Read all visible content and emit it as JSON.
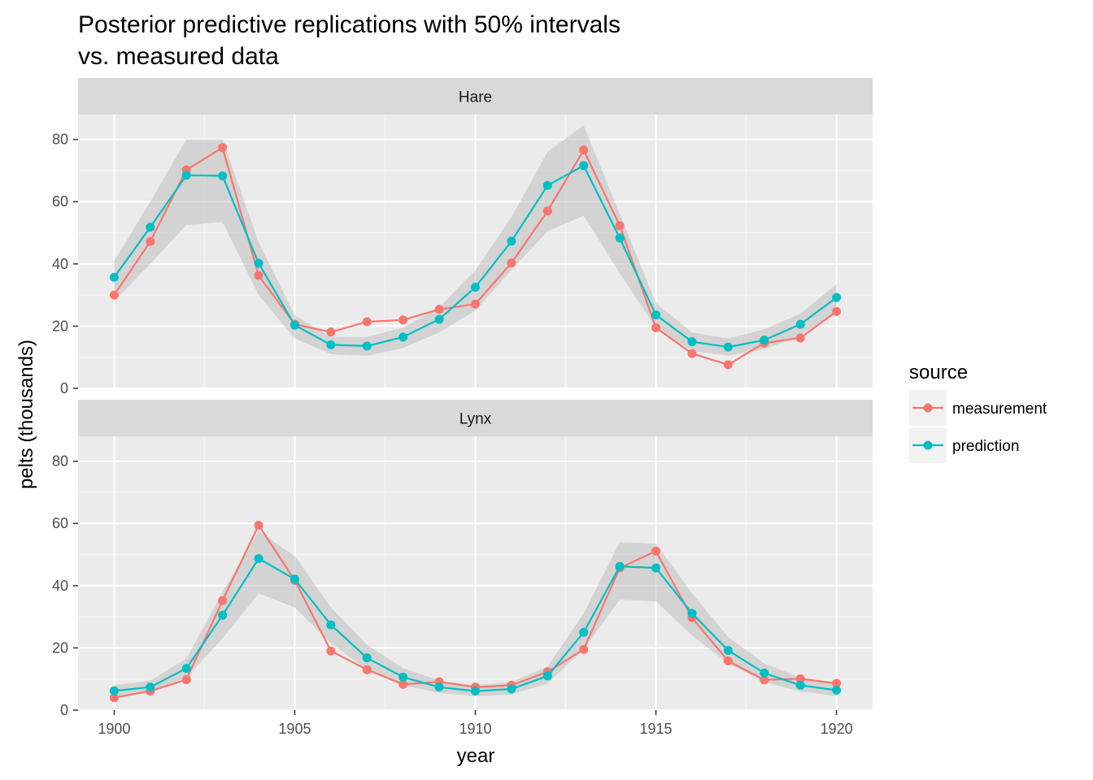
{
  "chart_data": {
    "type": "line",
    "title": "Posterior predictive replications with 50% intervals",
    "subtitle": "vs. measured data",
    "xlabel": "year",
    "ylabel": "pelts (thousands)",
    "xlim": [
      1899,
      1921
    ],
    "ylim": [
      0,
      88
    ],
    "x_ticks": [
      1900,
      1905,
      1910,
      1915,
      1920
    ],
    "y_ticks": [
      0,
      20,
      40,
      60,
      80
    ],
    "grid": true,
    "legend": {
      "title": "source",
      "placement": "right",
      "entries": [
        {
          "label": "measurement",
          "color": "#f8766d"
        },
        {
          "label": "prediction",
          "color": "#00bfc4"
        }
      ]
    },
    "x": [
      1900,
      1901,
      1902,
      1903,
      1904,
      1905,
      1906,
      1907,
      1908,
      1909,
      1910,
      1911,
      1912,
      1913,
      1914,
      1915,
      1916,
      1917,
      1918,
      1919,
      1920
    ],
    "panels": [
      {
        "label": "Hare",
        "measurement": [
          30,
          47.2,
          70.2,
          77.4,
          36.3,
          20.6,
          18.1,
          21.4,
          22,
          25.4,
          27.1,
          40.3,
          57,
          76.6,
          52.3,
          19.5,
          11.2,
          7.6,
          14.6,
          16.2,
          24.7
        ],
        "prediction": [
          35.7,
          51.8,
          68.5,
          68.3,
          40.2,
          20.3,
          14,
          13.6,
          16.5,
          22.2,
          32.5,
          47.3,
          65.2,
          71.6,
          48.3,
          23.6,
          15,
          13.3,
          15.5,
          20.6,
          29.2
        ],
        "interval_low": [
          28,
          40,
          52.5,
          53.5,
          30,
          16,
          11,
          10.5,
          13,
          18,
          25,
          38,
          50.5,
          55.5,
          37,
          19.5,
          12,
          10.5,
          12.5,
          17,
          24
        ],
        "interval_high": [
          41,
          60,
          80,
          80,
          47,
          23.5,
          16.5,
          16.5,
          19.5,
          26,
          38,
          55,
          76,
          84.5,
          56,
          27.5,
          18,
          16,
          19,
          24,
          33.5
        ]
      },
      {
        "label": "Lynx",
        "measurement": [
          4,
          6.1,
          9.8,
          35.2,
          59.4,
          41.7,
          19,
          13,
          8.3,
          9.1,
          7.4,
          8,
          12.3,
          19.5,
          45.7,
          51.1,
          29.7,
          15.8,
          9.7,
          10.1,
          8.6
        ],
        "prediction": [
          6.2,
          7.4,
          13.4,
          30.5,
          48.7,
          42.1,
          27.4,
          16.8,
          10.6,
          7.4,
          6.1,
          6.8,
          11,
          25,
          46.2,
          45.7,
          31.1,
          19.2,
          11.9,
          8,
          6.4
        ],
        "interval_low": [
          4.5,
          5.5,
          10.5,
          23,
          37.5,
          33,
          21.5,
          13,
          8,
          5.5,
          4.5,
          5,
          8.5,
          19.5,
          35.5,
          35,
          24,
          15,
          9,
          6,
          4.5
        ],
        "interval_high": [
          8,
          9.5,
          16.5,
          38,
          57.5,
          49.5,
          33,
          21,
          13.5,
          9.5,
          8,
          9,
          14,
          31,
          54,
          53.5,
          37.5,
          23.5,
          15,
          10.5,
          8.5
        ]
      }
    ]
  }
}
